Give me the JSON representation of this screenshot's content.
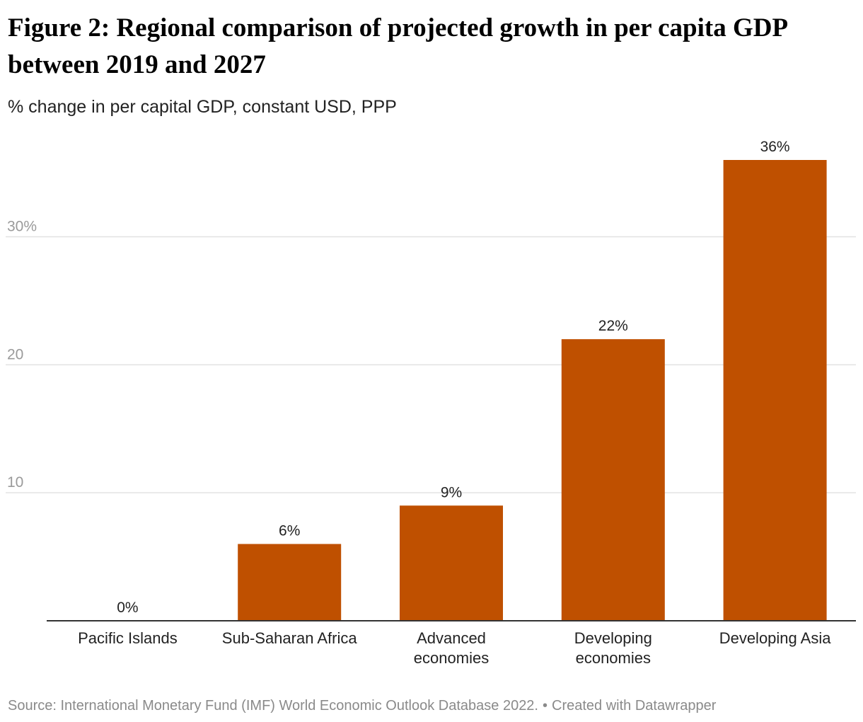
{
  "title": "Figure 2: Regional comparison of projected growth in per capita GDP between 2019 and 2027",
  "subtitle": "% change in per capital GDP, constant USD, PPP",
  "source": {
    "text": "Source: International Monetary Fund (IMF) World Economic Outlook Database 2022.",
    "separator": "•",
    "credit": "Created with Datawrapper"
  },
  "colors": {
    "bar": "#bf5000",
    "grid": "#e2e2e2",
    "axis": "#333333",
    "tick_label": "#9a9a9a",
    "value_label": "#222222",
    "category_label": "#222222"
  },
  "chart_data": {
    "type": "bar",
    "categories": [
      [
        "Pacific Islands"
      ],
      [
        "Sub-Saharan Africa"
      ],
      [
        "Advanced",
        "economies"
      ],
      [
        "Developing",
        "economies"
      ],
      [
        "Developing Asia"
      ]
    ],
    "values": [
      0,
      6,
      9,
      22,
      36
    ],
    "value_labels": [
      "0%",
      "6%",
      "9%",
      "22%",
      "36%"
    ],
    "yticks": [
      10,
      20,
      30
    ],
    "ytick_labels": [
      "10",
      "20",
      "30%"
    ],
    "ylim": [
      0,
      36
    ],
    "grid": true,
    "xlabel": "",
    "ylabel": ""
  }
}
